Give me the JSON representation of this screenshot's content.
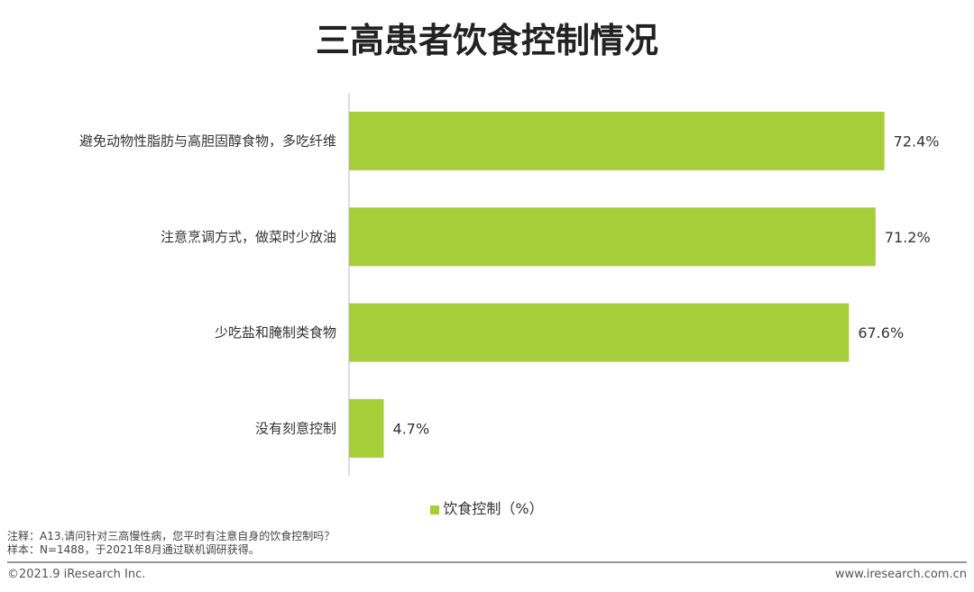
{
  "chart_data": {
    "type": "bar",
    "orientation": "horizontal",
    "title": "三高患者饮食控制情况",
    "categories": [
      "避免动物性脂肪与高胆固醇食物，多吃纤维",
      "注意烹调方式，做菜时少放油",
      "少吃盐和腌制类食物",
      "没有刻意控制"
    ],
    "series": [
      {
        "name": "饮食控制（%）",
        "values": [
          72.4,
          71.2,
          67.6,
          4.7
        ],
        "color": "#a6ce39"
      }
    ],
    "value_labels": [
      "72.4%",
      "71.2%",
      "67.6%",
      "4.7%"
    ],
    "xlim": [
      0,
      80
    ],
    "grid": false,
    "legend": "bottom"
  },
  "notes": {
    "question": "注释：A13.请问针对三高慢性病，您平时有注意自身的饮食控制吗？",
    "sample": "样本：N=1488，于2021年8月通过联机调研获得。"
  },
  "footer": {
    "copyright": "©2021.9 iResearch Inc.",
    "website": "www.iresearch.com.cn"
  }
}
